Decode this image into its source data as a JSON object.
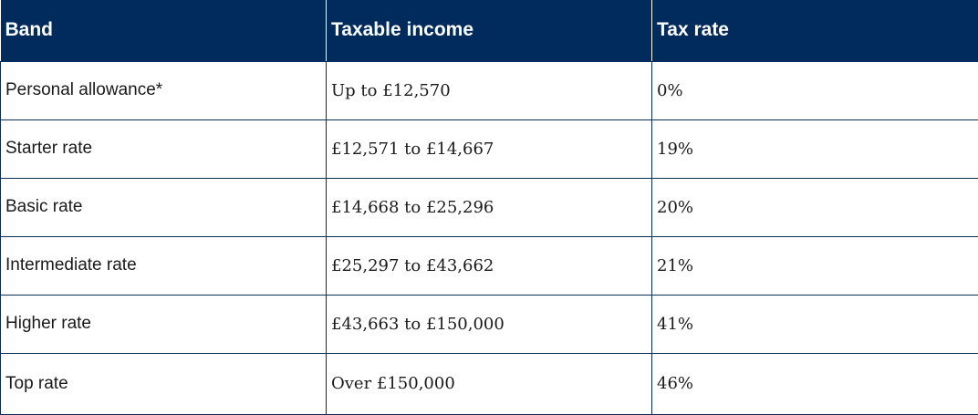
{
  "table": {
    "headers": [
      "Band",
      "Taxable income",
      "Tax rate"
    ],
    "rows": [
      [
        "Personal allowance*",
        "Up to £12,570",
        "0%"
      ],
      [
        "Starter rate",
        "£12,571 to £14,667",
        "19%"
      ],
      [
        "Basic rate",
        "£14,668 to £25,296",
        "20%"
      ],
      [
        "Intermediate rate",
        "£25,297 to £43,662",
        "21%"
      ],
      [
        "Higher rate",
        "£43,663 to £150,000",
        "41%"
      ],
      [
        "Top rate",
        "Over £150,000",
        "46%"
      ]
    ]
  },
  "colors": {
    "header_background": "#002b5c",
    "header_text": "#ffffff",
    "border": "#0d2d55",
    "body_text": "#1a1a1a"
  }
}
